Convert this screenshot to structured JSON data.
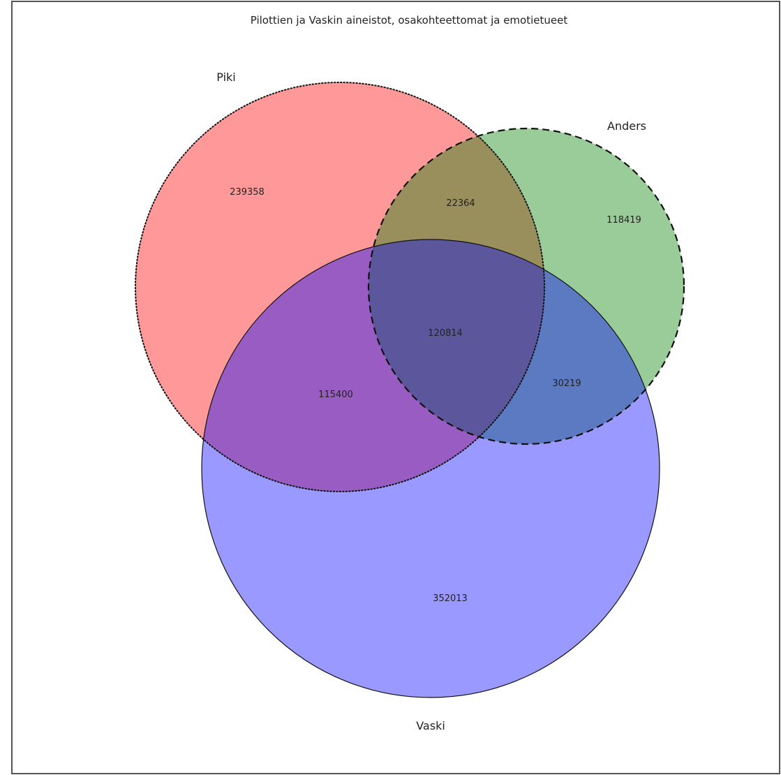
{
  "title": "Pilottien ja Vaskin aineistot, osakohteettomat ja emotietueet",
  "sets": [
    {
      "id": "piki",
      "label": "Piki",
      "color": "#ff0000",
      "line_style": "dotted"
    },
    {
      "id": "anders",
      "label": "Anders",
      "color": "#008000",
      "line_style": "dashed"
    },
    {
      "id": "vaski",
      "label": "Vaski",
      "color": "#0000ff",
      "line_style": "solid"
    }
  ],
  "regions": {
    "piki_only": "239358",
    "piki_anders": "22364",
    "anders_only": "118419",
    "piki_anders_vaski": "120814",
    "piki_vaski": "115400",
    "anders_vaski": "30219",
    "vaski_only": "352013"
  }
}
